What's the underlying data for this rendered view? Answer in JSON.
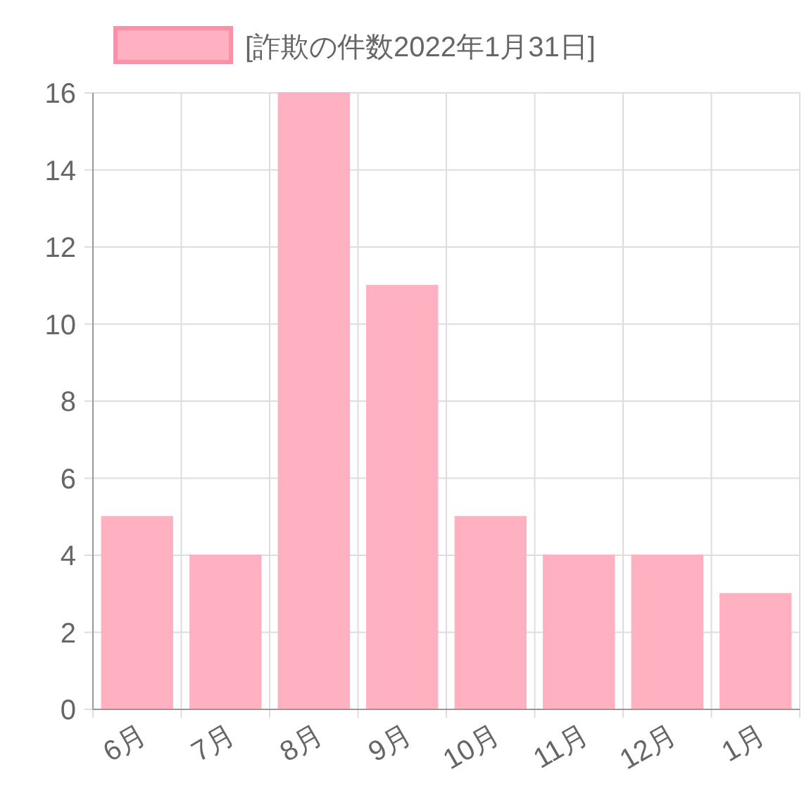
{
  "chart_data": {
    "type": "bar",
    "categories": [
      "6月",
      "7月",
      "8月",
      "9月",
      "10月",
      "11月",
      "12月",
      "1月"
    ],
    "series": [
      {
        "name": "[詐欺の件数2022年1月31日]",
        "color": "#ffb1c1",
        "values": [
          5,
          4,
          16,
          11,
          5,
          4,
          4,
          3
        ]
      }
    ],
    "ylim": [
      0,
      16
    ],
    "yticks": [
      0,
      2,
      4,
      6,
      8,
      10,
      12,
      14,
      16
    ],
    "grid": true,
    "legend": "top"
  }
}
